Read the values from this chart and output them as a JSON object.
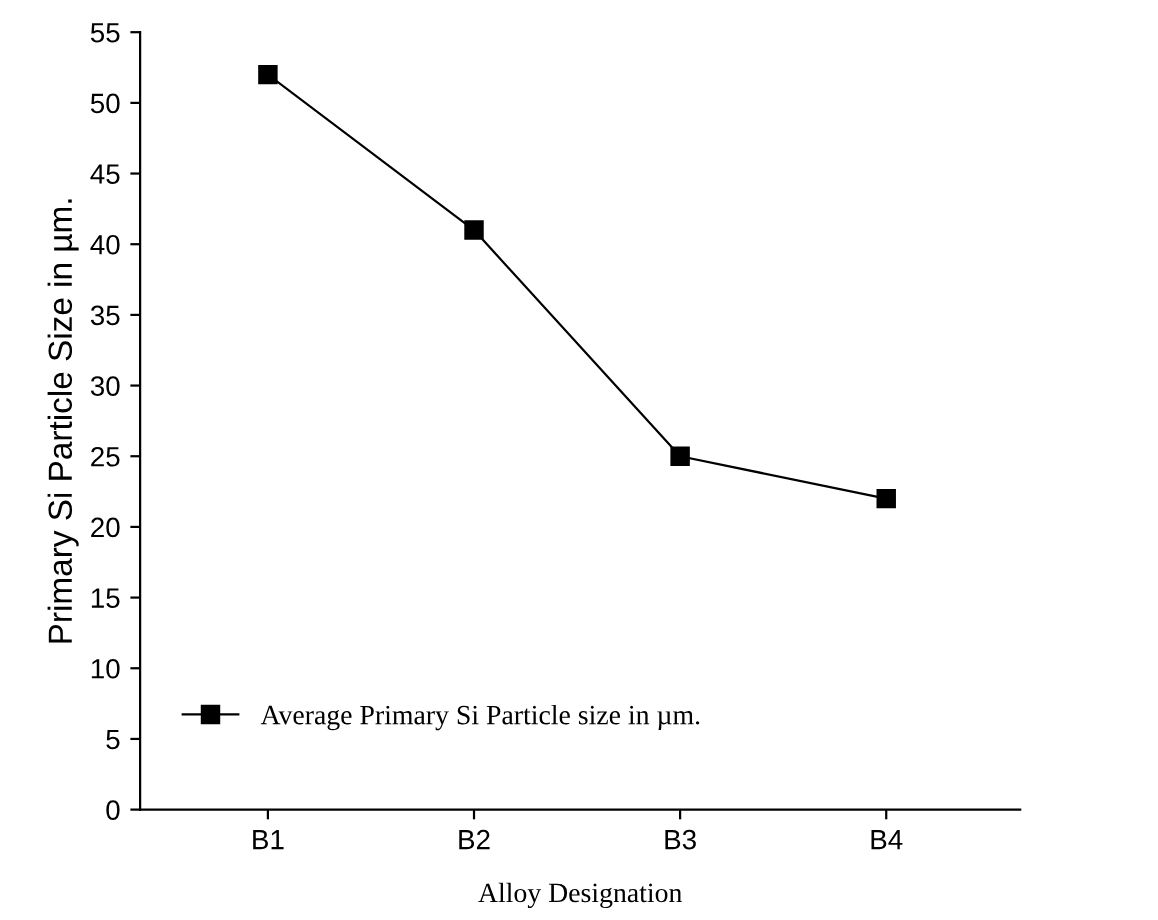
{
  "chart_data": {
    "type": "line",
    "categories": [
      "B1",
      "B2",
      "B3",
      "B4"
    ],
    "series": [
      {
        "name": "Average Primary Si Particle size in µm.",
        "color": "#000000",
        "values": [
          52,
          41,
          25,
          22
        ]
      }
    ],
    "xlabel": "Alloy Designation",
    "ylabel": "Primary Si Particle Size in µm.",
    "ylim": [
      0,
      55
    ],
    "yticks": [
      0,
      5,
      10,
      15,
      20,
      25,
      30,
      35,
      40,
      45,
      50,
      55
    ],
    "marker": "square",
    "line_style": "solid",
    "grid": false,
    "legend": "bottom left"
  }
}
